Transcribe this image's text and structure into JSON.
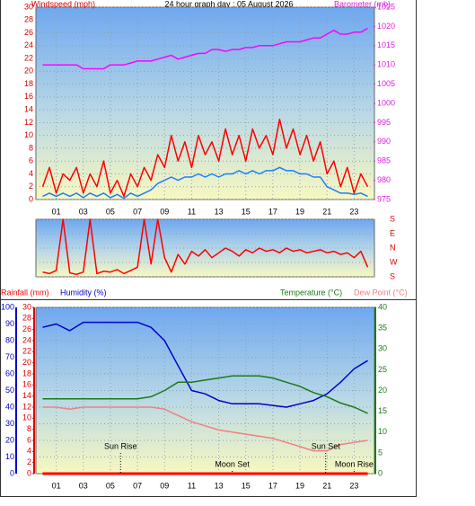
{
  "chart_data": [
    {
      "type": "line",
      "title": "24 hour graph day : 05 August 2026",
      "y_label": "Windspeed (mph)",
      "y_label_color": "#e00000",
      "y2_label": "Barometer (mb)",
      "y2_label_color": "#e020e0",
      "xlim": [
        -0.5,
        24.5
      ],
      "xticks": [
        {
          "value": 1,
          "label": "01"
        },
        {
          "value": 3,
          "label": "03"
        },
        {
          "value": 5,
          "label": "05"
        },
        {
          "value": 7,
          "label": "07"
        },
        {
          "value": 9,
          "label": "09"
        },
        11,
        13,
        15,
        17,
        19,
        21,
        23
      ],
      "ylim": [
        0,
        30
      ],
      "yticks": [
        0,
        2,
        4,
        6,
        8,
        10,
        12,
        14,
        16,
        18,
        20,
        22,
        24,
        26,
        28,
        30
      ],
      "y2lim": [
        975,
        1025
      ],
      "y2ticks": [
        975,
        980,
        985,
        990,
        995,
        1000,
        1005,
        1010,
        1015,
        1020,
        1025
      ],
      "grid": true,
      "x": [
        0,
        0.5,
        1,
        1.5,
        2,
        2.5,
        3,
        3.5,
        4,
        4.5,
        5,
        5.5,
        6,
        6.5,
        7,
        7.5,
        8,
        8.5,
        9,
        9.5,
        10,
        10.5,
        11,
        11.5,
        12,
        12.5,
        13,
        13.5,
        14,
        14.5,
        15,
        15.5,
        16,
        16.5,
        17,
        17.5,
        18,
        18.5,
        19,
        19.5,
        20,
        20.5,
        21,
        21.5,
        22,
        22.5,
        23,
        23.5,
        24
      ],
      "series": [
        {
          "color": "#ff0000",
          "axis": "y",
          "values": [
            2,
            5,
            1,
            4,
            3,
            5,
            1,
            4,
            2,
            6,
            1,
            3,
            0.5,
            4,
            2,
            5,
            3,
            7,
            5,
            10,
            6,
            9,
            5,
            10,
            7,
            9,
            6,
            11,
            7,
            10,
            6,
            11,
            8,
            10,
            7,
            12.5,
            8,
            11,
            7,
            10,
            6,
            9,
            4,
            6,
            2,
            5,
            1,
            4,
            2
          ]
        },
        {
          "color": "#1a7fff",
          "axis": "y",
          "values": [
            0.5,
            1,
            0.5,
            1,
            0.5,
            1,
            0.3,
            1,
            0.5,
            1,
            0.3,
            0.8,
            0.2,
            1,
            0.5,
            1,
            1.5,
            2.5,
            3,
            3.5,
            3,
            3.5,
            3.5,
            4,
            3.5,
            4,
            3.5,
            4,
            4,
            4.5,
            4,
            4.5,
            4,
            4.5,
            4.5,
            5,
            4.5,
            4.5,
            4,
            4,
            3.5,
            3.5,
            2,
            1.5,
            1,
            1,
            0.8,
            1,
            0.5
          ]
        },
        {
          "color": "#ff00ff",
          "axis": "y2",
          "values": [
            1010,
            1010,
            1010,
            1010,
            1010,
            1010,
            1009,
            1009,
            1009,
            1009,
            1010,
            1010,
            1010,
            1010.5,
            1011,
            1011,
            1011,
            1011.5,
            1012,
            1012.5,
            1011.5,
            1012,
            1012.5,
            1013,
            1013,
            1014,
            1014,
            1013.5,
            1014,
            1014,
            1014.5,
            1014.5,
            1015,
            1015,
            1015,
            1015.5,
            1016,
            1016,
            1016,
            1016.5,
            1017,
            1017,
            1018,
            1019,
            1018,
            1018,
            1018.5,
            1018.5,
            1019.5
          ]
        }
      ]
    },
    {
      "type": "line",
      "xlim": [
        -0.5,
        24.5
      ],
      "ylim": [
        -180,
        180
      ],
      "yticks": [
        {
          "value": 180,
          "label": "S"
        },
        {
          "value": 90,
          "label": "E"
        },
        {
          "value": 0,
          "label": "N"
        },
        {
          "value": -90,
          "label": "W"
        },
        {
          "value": -180,
          "label": "S"
        }
      ],
      "grid": true,
      "x": [
        0,
        0.5,
        1,
        1.5,
        2,
        2.5,
        3,
        3.5,
        4,
        4.5,
        5,
        5.5,
        6,
        6.5,
        7,
        7.5,
        8,
        8.5,
        9,
        9.5,
        10,
        10.5,
        11,
        11.5,
        12,
        12.5,
        13,
        13.5,
        14,
        14.5,
        15,
        15.5,
        16,
        16.5,
        17,
        17.5,
        18,
        18.5,
        19,
        19.5,
        20,
        20.5,
        21,
        21.5,
        22,
        22.5,
        23,
        23.5,
        24
      ],
      "series": [
        {
          "color": "#ff0000",
          "axis": "y",
          "values": [
            -150,
            -160,
            -140,
            180,
            -155,
            -165,
            -150,
            180,
            -160,
            -145,
            -150,
            -135,
            -160,
            -140,
            -120,
            180,
            -100,
            180,
            -60,
            -150,
            -40,
            -100,
            -20,
            -50,
            -10,
            -60,
            -30,
            0,
            -20,
            -50,
            -10,
            -30,
            0,
            -20,
            -10,
            -30,
            0,
            -20,
            -10,
            -30,
            -20,
            -10,
            -30,
            -20,
            -40,
            -30,
            -60,
            -20,
            -120
          ]
        }
      ]
    },
    {
      "type": "line",
      "xlim": [
        -0.5,
        24.5
      ],
      "xticks": [
        {
          "value": 1,
          "label": "01"
        },
        {
          "value": 3,
          "label": "03"
        },
        {
          "value": 5,
          "label": "05"
        },
        {
          "value": 7,
          "label": "07"
        },
        {
          "value": 9,
          "label": "09"
        },
        11,
        13,
        15,
        17,
        19,
        21,
        23
      ],
      "ylim": [
        0,
        100
      ],
      "yticks": [
        0,
        10,
        20,
        30,
        40,
        50,
        60,
        70,
        80,
        90,
        100
      ],
      "y_color": "#0000cc",
      "y3lim": [
        0,
        30
      ],
      "y3ticks": [
        0,
        2,
        4,
        6,
        8,
        10,
        12,
        14,
        16,
        18,
        20,
        22,
        24,
        26,
        28,
        30
      ],
      "y3_color": "#e00000",
      "y2lim": [
        0,
        40
      ],
      "y2ticks": [
        0,
        5,
        10,
        15,
        20,
        25,
        30,
        35,
        40
      ],
      "y2_color": "#1a7a1a",
      "grid": true,
      "x": [
        0,
        1,
        2,
        3,
        4,
        5,
        6,
        7,
        8,
        9,
        10,
        11,
        12,
        13,
        14,
        15,
        16,
        17,
        18,
        19,
        20,
        21,
        22,
        23,
        24
      ],
      "series": [
        {
          "name": "Rainfall (mm)",
          "color": "#ff0000",
          "axis": "y3",
          "values": [
            0,
            0,
            0,
            0,
            0,
            0,
            0,
            0,
            0,
            0,
            0,
            0,
            0,
            0,
            0,
            0,
            0,
            0,
            0,
            0,
            0,
            0,
            0,
            0,
            0
          ]
        },
        {
          "name": "Humidity (%)",
          "color": "#0000cc",
          "axis": "y",
          "values": [
            88,
            90,
            86,
            91,
            91,
            91,
            91,
            91,
            88,
            80,
            65,
            50,
            48,
            44,
            42,
            42,
            42,
            41,
            40,
            42,
            44,
            48,
            55,
            63,
            68
          ]
        },
        {
          "name": "Temperature (°C)",
          "color": "#1a7a1a",
          "axis": "y2",
          "values": [
            18,
            18,
            18,
            18,
            18,
            18,
            18,
            18,
            18.5,
            20,
            22,
            22,
            22.5,
            23,
            23.5,
            23.5,
            23.5,
            23,
            22,
            21,
            19.5,
            18.5,
            17,
            16,
            14.5
          ]
        },
        {
          "name": "Dew Point (°C)",
          "color": "#f08080",
          "axis": "y2",
          "values": [
            16,
            16,
            15.5,
            16,
            16,
            16,
            16,
            16,
            16,
            15.5,
            14,
            12.5,
            11.5,
            10.5,
            10,
            9.5,
            9,
            8.5,
            7.5,
            6.5,
            5.5,
            5.5,
            7,
            7.5,
            8
          ]
        }
      ],
      "annotations": [
        {
          "text": "Sun Rise",
          "x": 5.75
        },
        {
          "text": "Moon Set",
          "x": 14
        },
        {
          "text": "Sun Set",
          "x": 20.9
        },
        {
          "text": "Moon Rise",
          "x": 23
        }
      ]
    }
  ]
}
